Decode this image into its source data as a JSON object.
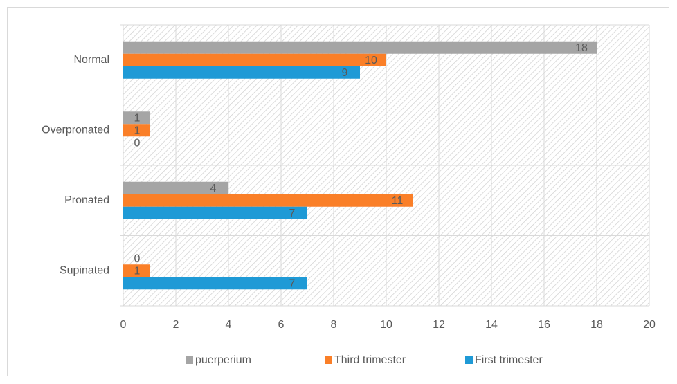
{
  "chart_data": {
    "type": "hbar",
    "categories": [
      "Normal",
      "Overpronated",
      "Pronated",
      "Supinated"
    ],
    "series": [
      {
        "name": "puerperium",
        "color": "#a5a5a5",
        "values": [
          18,
          1,
          4,
          0
        ]
      },
      {
        "name": "Third trimester",
        "color": "#fa7f28",
        "values": [
          10,
          1,
          11,
          1
        ]
      },
      {
        "name": "First trimester",
        "color": "#1f9ad6",
        "values": [
          9,
          0,
          7,
          7
        ]
      }
    ],
    "xlim": [
      0,
      20
    ],
    "xticks": [
      0,
      2,
      4,
      6,
      8,
      10,
      12,
      14,
      16,
      18,
      20
    ],
    "grid": true,
    "legend": "bottom"
  }
}
